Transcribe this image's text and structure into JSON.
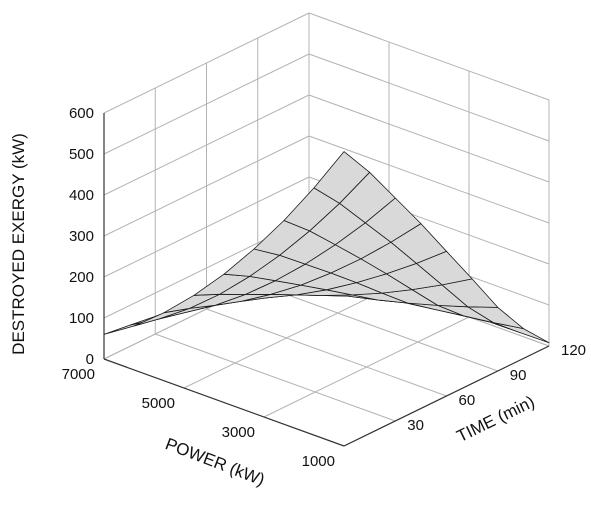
{
  "chart_data": {
    "type": "surface3d",
    "title": "",
    "zlabel": "DESTROYED EXERGY (kW)",
    "xlabel": "POWER (kW)",
    "ylabel": "TIME (min)",
    "z_ticks": [
      "0",
      "100",
      "200",
      "300",
      "400",
      "500",
      "600"
    ],
    "x_ticks": [
      "7000",
      "5000",
      "3000",
      "1000"
    ],
    "y_ticks": [
      "30",
      "60",
      "90",
      "120"
    ],
    "x_range": [
      1000,
      7000
    ],
    "y_range": [
      0,
      120
    ],
    "zlim": [
      0,
      600
    ],
    "grid": true,
    "surface_color": "#d9d9d9",
    "grid_line_color": "#1a1a1a",
    "box_line_color": "#b3b3b3",
    "surface": {
      "x": [
        7000,
        6250,
        5500,
        4750,
        4000,
        3250,
        2500,
        1750,
        1000
      ],
      "y": [
        0,
        15,
        30,
        45,
        60,
        75,
        90,
        105,
        120
      ],
      "z": [
        [
          60,
          107,
          166,
          235,
          313,
          401,
          497,
          603,
          718
        ],
        [
          52,
          94,
          146,
          207,
          277,
          355,
          441,
          535,
          637
        ],
        [
          43,
          79,
          123,
          176,
          236,
          303,
          377,
          457,
          544
        ],
        [
          36,
          65,
          102,
          146,
          195,
          251,
          312,
          379,
          451
        ],
        [
          28,
          51,
          80,
          114,
          153,
          197,
          245,
          297,
          353
        ],
        [
          19,
          36,
          57,
          82,
          110,
          141,
          176,
          214,
          255
        ],
        [
          12,
          22,
          35,
          50,
          67,
          86,
          107,
          130,
          155
        ],
        [
          5,
          10,
          16,
          23,
          31,
          41,
          51,
          61,
          73
        ],
        [
          0,
          1,
          2,
          3,
          4,
          5,
          6,
          7,
          8
        ]
      ]
    }
  }
}
